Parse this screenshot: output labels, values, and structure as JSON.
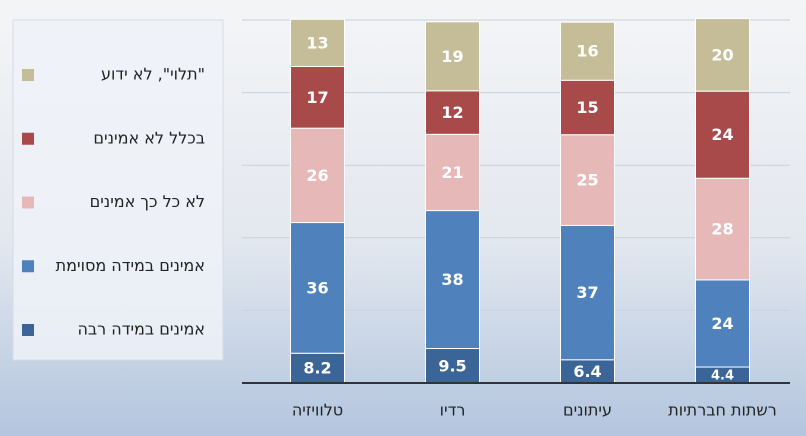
{
  "chart_data": {
    "type": "stacked_bar",
    "categories": [
      "טלוויזיה",
      "רדיו",
      "עיתונים",
      "רשתות חברתיות"
    ],
    "series": [
      {
        "name": "אמינים במידה רבה",
        "color": "#3b6497",
        "values": [
          8.2,
          9.5,
          6.4,
          4.4
        ]
      },
      {
        "name": "אמינים במידה מסוימת",
        "color": "#4f81bd",
        "values": [
          36,
          38,
          37,
          24
        ]
      },
      {
        "name": "לא כל כך אמינים",
        "color": "#e6b9b8",
        "values": [
          26,
          21,
          25,
          28
        ]
      },
      {
        "name": "בכלל לא אמינים",
        "color": "#a94a4a",
        "values": [
          17,
          12,
          15,
          24
        ]
      },
      {
        "name": "\"תלוי\", לא ידוע",
        "color": "#c4bd97",
        "values": [
          13,
          19,
          16,
          20
        ]
      }
    ],
    "ylim": [
      0,
      100
    ],
    "yticks": [
      0,
      20,
      40,
      60,
      80,
      100
    ],
    "grid": true,
    "legend": "left"
  }
}
